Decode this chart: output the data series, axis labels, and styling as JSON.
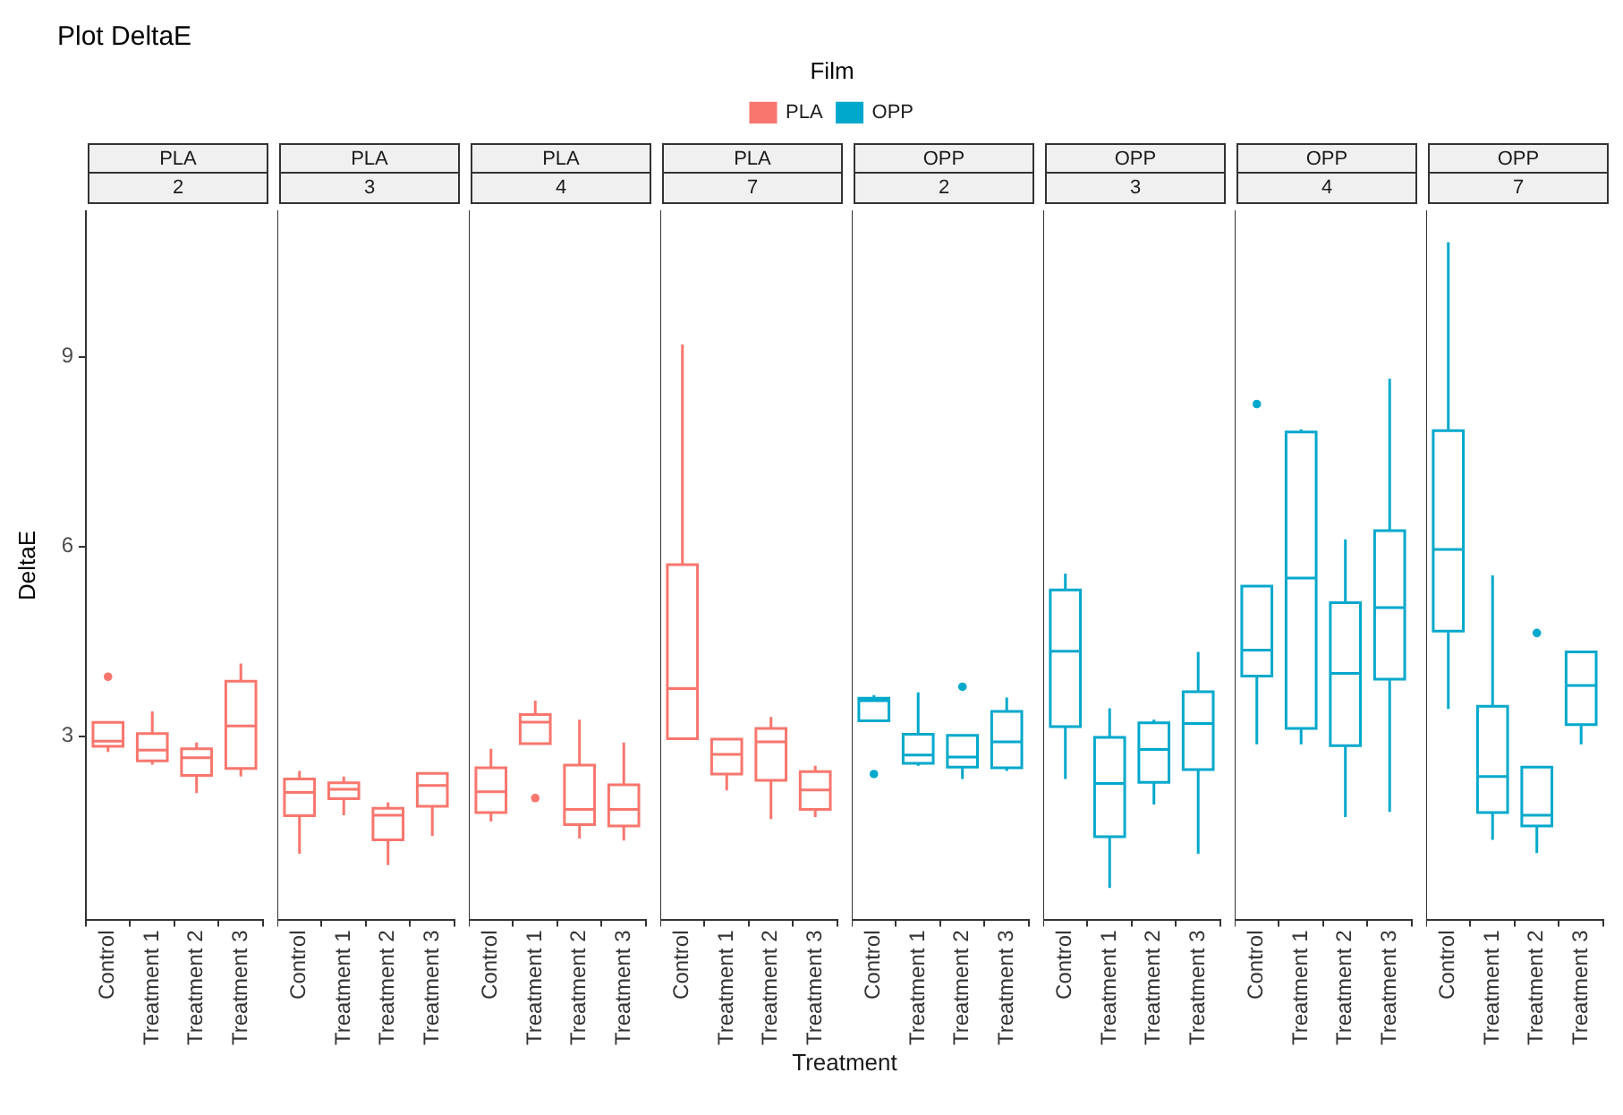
{
  "chart_data": [
    {
      "type": "other",
      "title": "Plot DeltaE",
      "legend_title": "Film",
      "legend": "top",
      "xlabel": "Treatment",
      "series": [
        {
          "name": "PLA",
          "color": "#f8766d"
        },
        {
          "name": "OPP",
          "color": "#00a8cc"
        }
      ]
    },
    {
      "type": "box",
      "title": "PLA",
      "subtitle": "2",
      "ylabel": "DeltaE",
      "categories": [
        "Control",
        "Treatment 1",
        "Treatment 2",
        "Treatment 3"
      ],
      "ylim": [
        0.1,
        11.3
      ],
      "yticks": [
        3,
        6,
        9
      ],
      "series": [
        {
          "color": "#f8766d",
          "boxes": [
            {
              "low": 2.75,
              "q1": 2.84,
              "median": 2.92,
              "q3": 3.22,
              "high": 3.22,
              "outliers": [
                3.94
              ]
            },
            {
              "low": 2.55,
              "q1": 2.61,
              "median": 2.78,
              "q3": 3.04,
              "high": 3.39
            },
            {
              "low": 2.1,
              "q1": 2.38,
              "median": 2.66,
              "q3": 2.8,
              "high": 2.9
            },
            {
              "low": 2.36,
              "q1": 2.49,
              "median": 3.16,
              "q3": 3.87,
              "high": 4.15
            }
          ]
        }
      ]
    },
    {
      "type": "box",
      "title": "PLA",
      "subtitle": "3",
      "categories": [
        "Control",
        "Treatment 1",
        "Treatment 2",
        "Treatment 3"
      ],
      "ylim": [
        0.1,
        11.3
      ],
      "yticks": [
        3,
        6,
        9
      ],
      "tick_labels": "x",
      "series": [
        {
          "color": "#f8766d",
          "boxes": [
            {
              "low": 1.14,
              "q1": 1.74,
              "median": 2.11,
              "q3": 2.32,
              "high": 2.45
            },
            {
              "low": 1.75,
              "q1": 2.01,
              "median": 2.16,
              "q3": 2.26,
              "high": 2.36
            },
            {
              "low": 0.96,
              "q1": 1.36,
              "median": 1.75,
              "q3": 1.86,
              "high": 1.95
            },
            {
              "low": 1.42,
              "q1": 1.89,
              "median": 2.22,
              "q3": 2.41,
              "high": 2.41
            }
          ]
        }
      ]
    },
    {
      "type": "box",
      "title": "PLA",
      "subtitle": "4",
      "categories": [
        "Control",
        "Treatment 1",
        "Treatment 2",
        "Treatment 3"
      ],
      "ylim": [
        0.1,
        11.3
      ],
      "yticks": [
        3,
        6,
        9
      ],
      "tick_labels": "x",
      "series": [
        {
          "color": "#f8766d",
          "boxes": [
            {
              "low": 1.65,
              "q1": 1.79,
              "median": 2.12,
              "q3": 2.5,
              "high": 2.8
            },
            {
              "low": 2.88,
              "q1": 2.88,
              "median": 3.22,
              "q3": 3.34,
              "high": 3.56,
              "outliers": [
                2.02
              ]
            },
            {
              "low": 1.38,
              "q1": 1.6,
              "median": 1.84,
              "q3": 2.54,
              "high": 3.26
            },
            {
              "low": 1.35,
              "q1": 1.58,
              "median": 1.84,
              "q3": 2.23,
              "high": 2.9
            }
          ]
        }
      ]
    },
    {
      "type": "box",
      "title": "PLA",
      "subtitle": "7",
      "categories": [
        "Control",
        "Treatment 1",
        "Treatment 2",
        "Treatment 3"
      ],
      "ylim": [
        0.1,
        11.3
      ],
      "yticks": [
        3,
        6,
        9
      ],
      "tick_labels": "x",
      "series": [
        {
          "color": "#f8766d",
          "boxes": [
            {
              "low": 2.96,
              "q1": 2.96,
              "median": 3.75,
              "q3": 5.71,
              "high": 9.19
            },
            {
              "low": 2.14,
              "q1": 2.4,
              "median": 2.71,
              "q3": 2.95,
              "high": 2.95
            },
            {
              "low": 1.69,
              "q1": 2.3,
              "median": 2.91,
              "q3": 3.12,
              "high": 3.3
            },
            {
              "low": 1.72,
              "q1": 1.84,
              "median": 2.15,
              "q3": 2.44,
              "high": 2.53
            }
          ]
        }
      ]
    },
    {
      "type": "box",
      "title": "OPP",
      "subtitle": "2",
      "categories": [
        "Control",
        "Treatment 1",
        "Treatment 2",
        "Treatment 3"
      ],
      "ylim": [
        0.1,
        11.3
      ],
      "yticks": [
        3,
        6,
        9
      ],
      "tick_labels": "x",
      "series": [
        {
          "color": "#00a8cc",
          "boxes": [
            {
              "low": 3.24,
              "q1": 3.24,
              "median": 3.56,
              "q3": 3.6,
              "high": 3.65,
              "outliers": [
                2.4
              ]
            },
            {
              "low": 2.53,
              "q1": 2.57,
              "median": 2.7,
              "q3": 3.03,
              "high": 3.69
            },
            {
              "low": 2.32,
              "q1": 2.51,
              "median": 2.67,
              "q3": 3.01,
              "high": 3.01,
              "outliers": [
                3.78
              ]
            },
            {
              "low": 2.45,
              "q1": 2.5,
              "median": 2.91,
              "q3": 3.39,
              "high": 3.61
            }
          ]
        }
      ]
    },
    {
      "type": "box",
      "title": "OPP",
      "subtitle": "3",
      "categories": [
        "Control",
        "Treatment 1",
        "Treatment 2",
        "Treatment 3"
      ],
      "ylim": [
        0.1,
        11.3
      ],
      "yticks": [
        3,
        6,
        9
      ],
      "tick_labels": "x",
      "series": [
        {
          "color": "#00a8cc",
          "boxes": [
            {
              "low": 2.32,
              "q1": 3.15,
              "median": 4.34,
              "q3": 5.31,
              "high": 5.57
            },
            {
              "low": 0.6,
              "q1": 1.41,
              "median": 2.25,
              "q3": 2.98,
              "high": 3.44
            },
            {
              "low": 1.92,
              "q1": 2.27,
              "median": 2.79,
              "q3": 3.21,
              "high": 3.26
            },
            {
              "low": 1.14,
              "q1": 2.47,
              "median": 3.2,
              "q3": 3.7,
              "high": 4.33
            }
          ]
        }
      ]
    },
    {
      "type": "box",
      "title": "OPP",
      "subtitle": "4",
      "categories": [
        "Control",
        "Treatment 1",
        "Treatment 2",
        "Treatment 3"
      ],
      "ylim": [
        0.1,
        11.3
      ],
      "yticks": [
        3,
        6,
        9
      ],
      "tick_labels": "x",
      "series": [
        {
          "color": "#00a8cc",
          "boxes": [
            {
              "low": 2.87,
              "q1": 3.95,
              "median": 4.36,
              "q3": 5.37,
              "high": 5.37,
              "outliers": [
                8.25
              ]
            },
            {
              "low": 2.87,
              "q1": 3.12,
              "median": 5.5,
              "q3": 7.81,
              "high": 7.85
            },
            {
              "low": 1.72,
              "q1": 2.85,
              "median": 3.99,
              "q3": 5.11,
              "high": 6.11
            },
            {
              "low": 1.8,
              "q1": 3.9,
              "median": 5.03,
              "q3": 6.25,
              "high": 8.65
            }
          ]
        }
      ]
    },
    {
      "type": "box",
      "title": "OPP",
      "subtitle": "7",
      "categories": [
        "Control",
        "Treatment 1",
        "Treatment 2",
        "Treatment 3"
      ],
      "ylim": [
        0.1,
        11.3
      ],
      "yticks": [
        3,
        6,
        9
      ],
      "tick_labels": "x",
      "series": [
        {
          "color": "#00a8cc",
          "boxes": [
            {
              "low": 3.43,
              "q1": 4.66,
              "median": 5.95,
              "q3": 7.83,
              "high": 10.81
            },
            {
              "low": 1.36,
              "q1": 1.79,
              "median": 2.36,
              "q3": 3.47,
              "high": 5.54
            },
            {
              "low": 1.15,
              "q1": 1.58,
              "median": 1.75,
              "q3": 2.51,
              "high": 2.51,
              "outliers": [
                4.63
              ]
            },
            {
              "low": 2.87,
              "q1": 3.18,
              "median": 3.8,
              "q3": 4.33,
              "high": 4.33
            }
          ]
        }
      ]
    }
  ]
}
